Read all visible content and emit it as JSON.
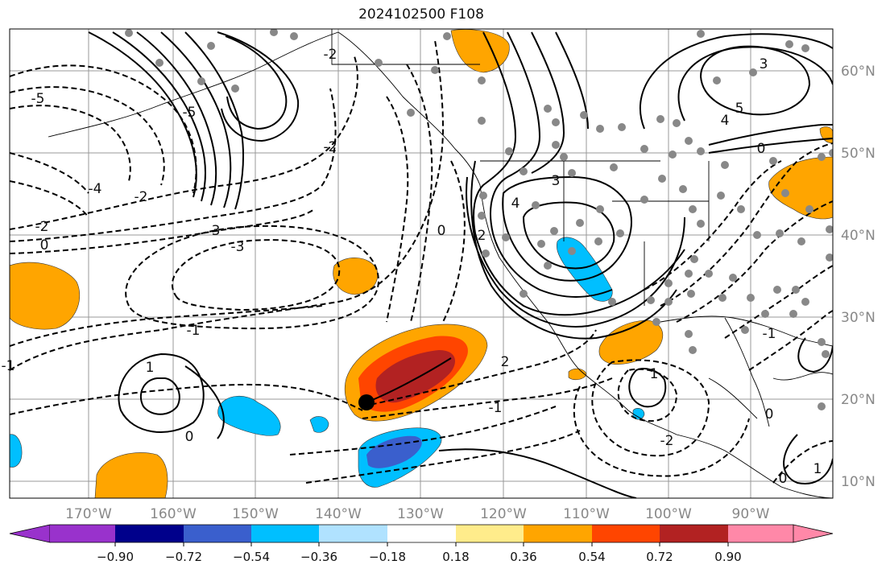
{
  "title": "2024102500 F108",
  "map": {
    "lon_ticks": [
      "170°W",
      "160°W",
      "150°W",
      "140°W",
      "130°W",
      "120°W",
      "110°W",
      "100°W",
      "90°W"
    ],
    "lat_ticks": [
      "60°N",
      "50°N",
      "40°N",
      "30°N",
      "20°N",
      "10°N"
    ],
    "contour_labels": [
      "-5",
      "-4",
      "-2",
      "0",
      "-2",
      "-3",
      "-1",
      "1",
      "2",
      "0",
      "-1",
      "-2",
      "3",
      "4",
      "3",
      "2",
      "-2",
      "0",
      "1",
      "-1",
      "-1",
      "0",
      "0",
      "1",
      "-5",
      "-2",
      "0",
      "4",
      "5",
      "3"
    ]
  },
  "colorbar": {
    "colors": [
      "#9932cc",
      "#00008b",
      "#3a5fcd",
      "#00bfff",
      "#b0e2ff",
      "#ffffff",
      "#ffec8b",
      "#ffa500",
      "#ff4500",
      "#b22222",
      "#ff88a8",
      "#ff88a8"
    ],
    "tick_labels": [
      "−0.90",
      "−0.72",
      "−0.54",
      "−0.36",
      "−0.18",
      "0.18",
      "0.36",
      "0.54",
      "0.72",
      "0.90"
    ]
  }
}
